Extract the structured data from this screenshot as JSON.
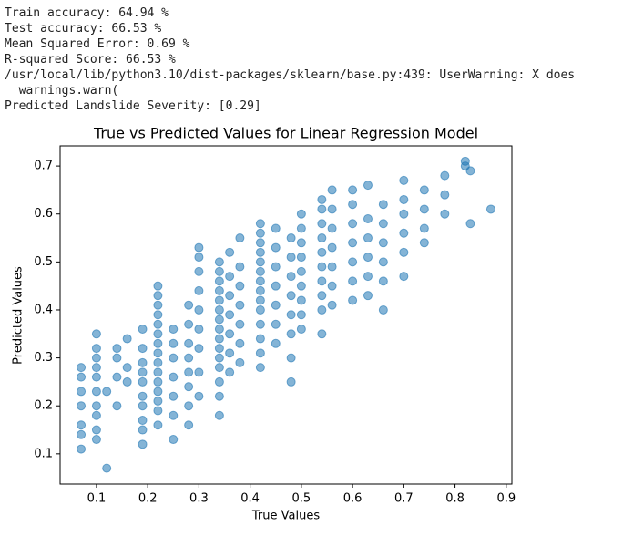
{
  "output_lines": [
    "Train accuracy: 64.94 %",
    "Test accuracy: 66.53 %",
    "Mean Squared Error: 0.69 %",
    "R-squared Score: 66.53 %",
    "/usr/local/lib/python3.10/dist-packages/sklearn/base.py:439: UserWarning: X does",
    "  warnings.warn(",
    "Predicted Landslide Severity: [0.29]"
  ],
  "chart_data": {
    "type": "scatter",
    "title": "True vs Predicted Values for Linear Regression Model",
    "x_label": "True Values",
    "y_label": "Predicted Values",
    "color": "#1f77b4",
    "xlim": [
      0.029,
      0.911
    ],
    "ylim": [
      0.037,
      0.742
    ],
    "xticks": [
      0.1,
      0.2,
      0.3,
      0.4,
      0.5,
      0.6,
      0.7,
      0.8,
      0.9
    ],
    "yticks": [
      0.1,
      0.2,
      0.3,
      0.4,
      0.5,
      0.6,
      0.7
    ],
    "series": [
      {
        "x": [
          0.07,
          0.07,
          0.07,
          0.07,
          0.07,
          0.07,
          0.07,
          0.1,
          0.1,
          0.1,
          0.1,
          0.1,
          0.1,
          0.1,
          0.1,
          0.1,
          0.1,
          0.12,
          0.12,
          0.14,
          0.14,
          0.14,
          0.14,
          0.16,
          0.16,
          0.16,
          0.19,
          0.19,
          0.19,
          0.19,
          0.19,
          0.19,
          0.19,
          0.19,
          0.19,
          0.19,
          0.22,
          0.22,
          0.22,
          0.22,
          0.22,
          0.22,
          0.22,
          0.22,
          0.22,
          0.22,
          0.22,
          0.22,
          0.22,
          0.22,
          0.22,
          0.25,
          0.25,
          0.25,
          0.25,
          0.25,
          0.25,
          0.25,
          0.28,
          0.28,
          0.28,
          0.28,
          0.28,
          0.28,
          0.28,
          0.28,
          0.3,
          0.3,
          0.3,
          0.3,
          0.3,
          0.3,
          0.3,
          0.3,
          0.3,
          0.34,
          0.34,
          0.34,
          0.34,
          0.34,
          0.34,
          0.34,
          0.34,
          0.34,
          0.34,
          0.34,
          0.34,
          0.34,
          0.34,
          0.34,
          0.36,
          0.36,
          0.36,
          0.36,
          0.36,
          0.36,
          0.36,
          0.38,
          0.38,
          0.38,
          0.38,
          0.38,
          0.38,
          0.38,
          0.42,
          0.42,
          0.42,
          0.42,
          0.42,
          0.42,
          0.42,
          0.42,
          0.42,
          0.42,
          0.42,
          0.42,
          0.42,
          0.42,
          0.45,
          0.45,
          0.45,
          0.45,
          0.45,
          0.45,
          0.45,
          0.48,
          0.48,
          0.48,
          0.48,
          0.48,
          0.48,
          0.48,
          0.48,
          0.5,
          0.5,
          0.5,
          0.5,
          0.5,
          0.5,
          0.5,
          0.5,
          0.5,
          0.54,
          0.54,
          0.54,
          0.54,
          0.54,
          0.54,
          0.54,
          0.54,
          0.54,
          0.54,
          0.56,
          0.56,
          0.56,
          0.56,
          0.56,
          0.56,
          0.56,
          0.6,
          0.6,
          0.6,
          0.6,
          0.6,
          0.6,
          0.6,
          0.63,
          0.63,
          0.63,
          0.63,
          0.63,
          0.63,
          0.66,
          0.66,
          0.66,
          0.66,
          0.66,
          0.66,
          0.7,
          0.7,
          0.7,
          0.7,
          0.7,
          0.7,
          0.74,
          0.74,
          0.74,
          0.74,
          0.78,
          0.78,
          0.78,
          0.82,
          0.82,
          0.83,
          0.83,
          0.87
        ],
        "values": [
          0.11,
          0.14,
          0.16,
          0.2,
          0.23,
          0.26,
          0.28,
          0.13,
          0.15,
          0.18,
          0.2,
          0.23,
          0.26,
          0.28,
          0.3,
          0.32,
          0.35,
          0.07,
          0.23,
          0.2,
          0.26,
          0.3,
          0.32,
          0.25,
          0.28,
          0.34,
          0.12,
          0.15,
          0.17,
          0.2,
          0.22,
          0.25,
          0.27,
          0.29,
          0.32,
          0.36,
          0.16,
          0.19,
          0.21,
          0.23,
          0.25,
          0.27,
          0.29,
          0.31,
          0.33,
          0.35,
          0.37,
          0.39,
          0.41,
          0.43,
          0.45,
          0.13,
          0.18,
          0.22,
          0.26,
          0.3,
          0.33,
          0.36,
          0.16,
          0.2,
          0.24,
          0.27,
          0.3,
          0.33,
          0.37,
          0.41,
          0.22,
          0.27,
          0.32,
          0.36,
          0.4,
          0.44,
          0.48,
          0.51,
          0.53,
          0.18,
          0.22,
          0.25,
          0.28,
          0.3,
          0.32,
          0.34,
          0.36,
          0.38,
          0.4,
          0.42,
          0.44,
          0.46,
          0.48,
          0.5,
          0.27,
          0.31,
          0.35,
          0.39,
          0.43,
          0.47,
          0.52,
          0.29,
          0.33,
          0.37,
          0.41,
          0.45,
          0.49,
          0.55,
          0.28,
          0.31,
          0.34,
          0.37,
          0.4,
          0.42,
          0.44,
          0.46,
          0.48,
          0.5,
          0.52,
          0.54,
          0.56,
          0.58,
          0.33,
          0.37,
          0.41,
          0.45,
          0.49,
          0.53,
          0.57,
          0.25,
          0.3,
          0.35,
          0.39,
          0.43,
          0.47,
          0.51,
          0.55,
          0.36,
          0.39,
          0.42,
          0.45,
          0.48,
          0.51,
          0.54,
          0.57,
          0.6,
          0.35,
          0.4,
          0.43,
          0.46,
          0.49,
          0.52,
          0.55,
          0.58,
          0.61,
          0.63,
          0.41,
          0.45,
          0.49,
          0.53,
          0.57,
          0.61,
          0.65,
          0.42,
          0.46,
          0.5,
          0.54,
          0.58,
          0.62,
          0.65,
          0.43,
          0.47,
          0.51,
          0.55,
          0.59,
          0.66,
          0.4,
          0.46,
          0.5,
          0.54,
          0.58,
          0.62,
          0.47,
          0.52,
          0.56,
          0.6,
          0.63,
          0.67,
          0.54,
          0.57,
          0.61,
          0.65,
          0.6,
          0.64,
          0.68,
          0.7,
          0.71,
          0.58,
          0.69,
          0.61
        ]
      }
    ]
  }
}
